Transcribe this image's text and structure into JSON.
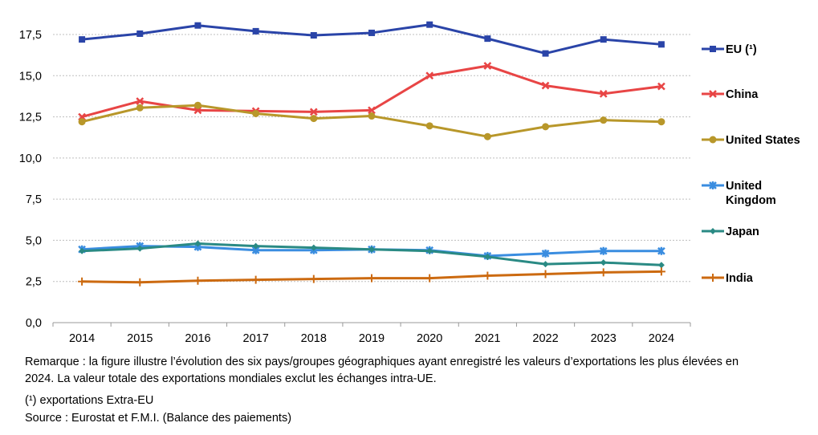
{
  "chart_data": {
    "type": "line",
    "x": [
      2014,
      2015,
      2016,
      2017,
      2018,
      2019,
      2020,
      2021,
      2022,
      2023,
      2024
    ],
    "ylim": [
      0,
      17.5
    ],
    "yticks": [
      "0,0",
      "2,5",
      "5,0",
      "7,5",
      "10,0",
      "12,5",
      "15,0",
      "17,5"
    ],
    "grid": true,
    "legend_placement": "right",
    "series": [
      {
        "name": "EU (¹)",
        "color": "#2a44a8",
        "marker": "square",
        "values": [
          17.2,
          17.55,
          18.05,
          17.7,
          17.45,
          17.6,
          18.1,
          17.25,
          16.35,
          17.2,
          16.9
        ]
      },
      {
        "name": "China",
        "color": "#e84545",
        "marker": "x",
        "values": [
          12.5,
          13.45,
          12.9,
          12.85,
          12.8,
          12.9,
          15.0,
          15.6,
          14.4,
          13.9,
          14.35
        ]
      },
      {
        "name": "United States",
        "color": "#b8972a",
        "marker": "circle",
        "values": [
          12.2,
          13.05,
          13.2,
          12.7,
          12.4,
          12.55,
          11.95,
          11.3,
          11.9,
          12.3,
          12.2
        ]
      },
      {
        "name": "United Kingdom",
        "color": "#3a8de0",
        "marker": "star",
        "values": [
          4.45,
          4.65,
          4.6,
          4.4,
          4.4,
          4.45,
          4.4,
          4.05,
          4.2,
          4.35,
          4.35
        ]
      },
      {
        "name": "Japan",
        "color": "#2a8a84",
        "marker": "diamond",
        "values": [
          4.35,
          4.5,
          4.8,
          4.65,
          4.55,
          4.45,
          4.35,
          4.0,
          3.55,
          3.65,
          3.5
        ]
      },
      {
        "name": "India",
        "color": "#cc6a10",
        "marker": "plus",
        "values": [
          2.5,
          2.45,
          2.55,
          2.6,
          2.65,
          2.7,
          2.7,
          2.85,
          2.95,
          3.05,
          3.1
        ]
      }
    ]
  },
  "notes": {
    "remark_line1": "Remarque : la figure illustre l’évolution des six pays/groupes géographiques ayant enregistré les valeurs d’exportations les plus élevées en",
    "remark_line2": "2024. La valeur totale des exportations mondiales exclut les échanges intra-UE.",
    "footnote": "(¹) exportations Extra-EU",
    "source": "Source : Eurostat et F.M.I. (Balance des paiements)"
  }
}
